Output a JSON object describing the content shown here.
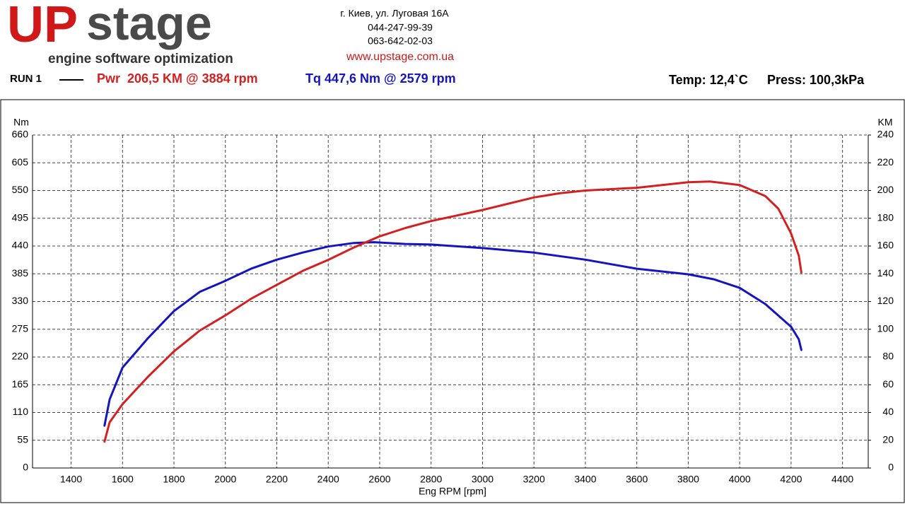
{
  "header": {
    "logo_mark": "UP",
    "logo_word": "stage",
    "logo_tagline": "engine software optimization",
    "address": "г. Киев, ул. Луговая 16А",
    "phone1": "044-247-99-39",
    "phone2": "063-642-02-03",
    "website": "www.upstage.com.ua",
    "run": "RUN 1",
    "power_summary": "Pwr  206,5 KM @ 3884 rpm",
    "torque_summary": "Tq 447,6 Nm @ 2579 rpm",
    "temp": "Temp: 12,4`C",
    "press": "Press: 100,3kPa"
  },
  "chart_data": {
    "type": "line",
    "x_label": "Eng RPM [rpm]",
    "y_label": "Nm",
    "y2_label": "KM",
    "grid": true,
    "xlim": [
      1250,
      4500
    ],
    "xticks": [
      1400,
      1600,
      1800,
      2000,
      2200,
      2400,
      2600,
      2800,
      3000,
      3200,
      3400,
      3600,
      3800,
      4000,
      4200,
      4400
    ],
    "ylim": [
      0,
      660
    ],
    "yticks": [
      0,
      55,
      110,
      165,
      220,
      275,
      330,
      385,
      440,
      495,
      550,
      605,
      660
    ],
    "y2lim": [
      0,
      240
    ],
    "y2ticks": [
      0,
      20,
      40,
      60,
      80,
      100,
      120,
      140,
      160,
      180,
      200,
      220,
      240
    ],
    "series": [
      {
        "color": "#1414c0",
        "axis": "y",
        "x": [
          1530,
          1550,
          1600,
          1700,
          1800,
          1900,
          2000,
          2100,
          2200,
          2300,
          2400,
          2500,
          2579,
          2700,
          2800,
          3000,
          3200,
          3400,
          3600,
          3800,
          3900,
          4000,
          4100,
          4200,
          4230,
          4240
        ],
        "values": [
          84,
          136,
          199,
          258,
          311,
          349,
          371,
          395,
          413,
          427,
          439,
          446,
          447.6,
          444,
          443,
          436,
          427,
          413,
          395,
          384,
          374,
          357,
          325,
          280,
          255,
          234
        ]
      },
      {
        "color": "#d42020",
        "axis": "y2",
        "x": [
          1530,
          1550,
          1600,
          1700,
          1800,
          1900,
          2000,
          2100,
          2200,
          2300,
          2400,
          2500,
          2600,
          2700,
          2800,
          3000,
          3200,
          3300,
          3400,
          3600,
          3800,
          3884,
          4000,
          4100,
          4150,
          4200,
          4230,
          4240
        ],
        "values": [
          19,
          33,
          46,
          66,
          84,
          99,
          110,
          122,
          132,
          142,
          150,
          159,
          167,
          173,
          178,
          186,
          195,
          198,
          200,
          202,
          206,
          206.5,
          204,
          196,
          187,
          169,
          153,
          141
        ]
      }
    ]
  }
}
